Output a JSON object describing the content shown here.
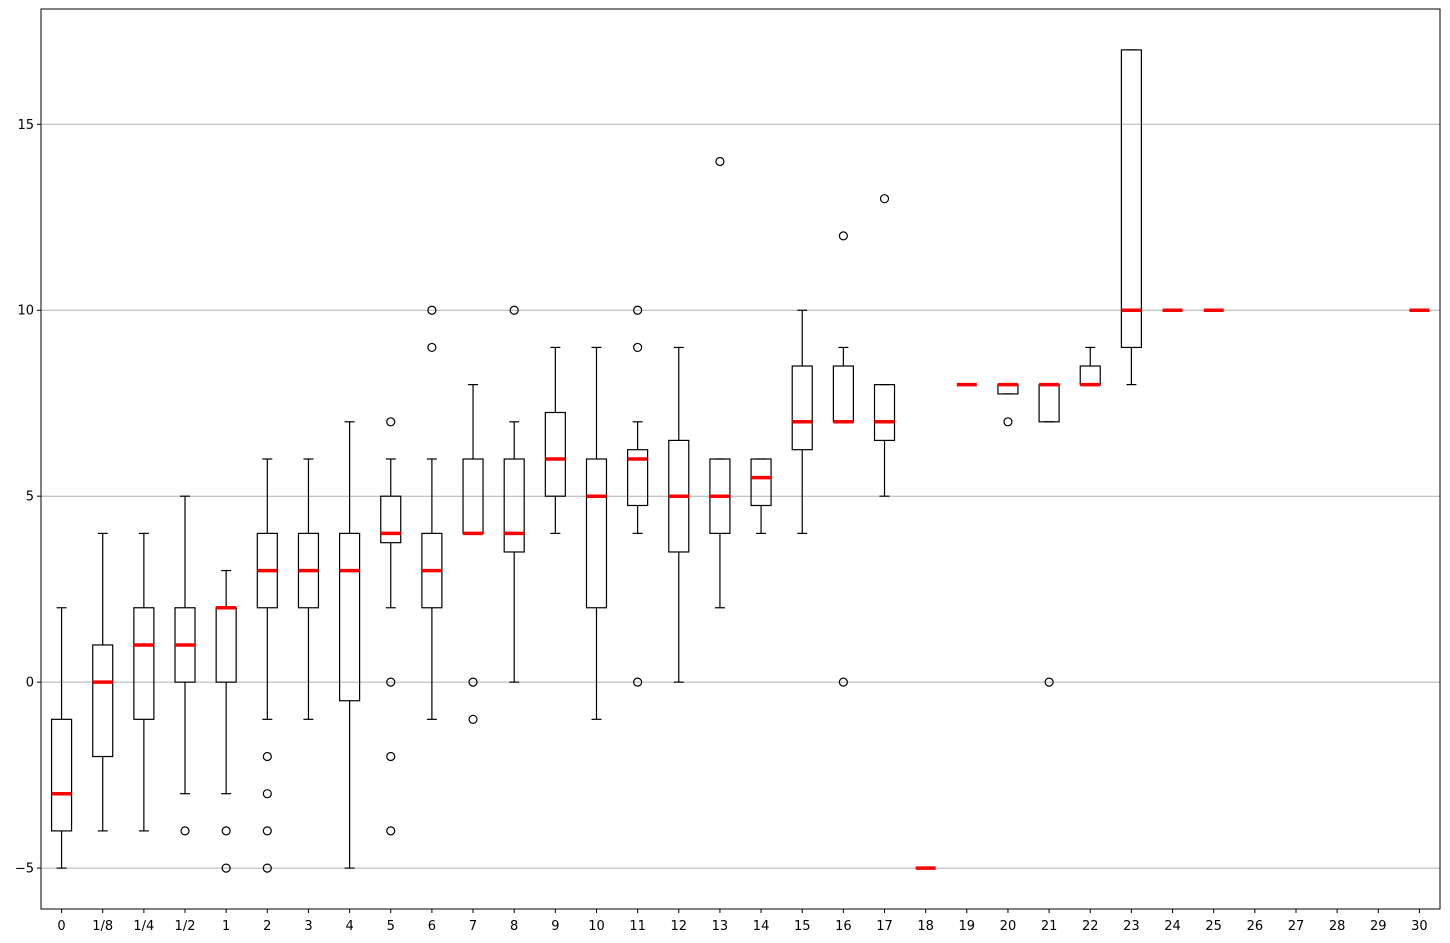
{
  "chart_data": {
    "type": "box",
    "title": "",
    "xlabel": "",
    "ylabel": "",
    "ylim": [
      -6.1,
      18.1
    ],
    "yticks": [
      -5,
      0,
      5,
      10,
      15
    ],
    "ytick_labels": [
      "−5",
      "0",
      "5",
      "10",
      "15"
    ],
    "grid": "horizontal",
    "median_color": "#ff0000",
    "box_color": "#000000",
    "categories": [
      "0",
      "1/8",
      "1/4",
      "1/2",
      "1",
      "2",
      "3",
      "4",
      "5",
      "6",
      "7",
      "8",
      "9",
      "10",
      "11",
      "12",
      "13",
      "14",
      "15",
      "16",
      "17",
      "18",
      "19",
      "20",
      "21",
      "22",
      "23",
      "24",
      "25",
      "26",
      "27",
      "28",
      "29",
      "30"
    ],
    "boxes": [
      {
        "category": "0",
        "whislo": -5,
        "q1": -4,
        "med": -3,
        "q3": -1,
        "whishi": 2,
        "fliers": []
      },
      {
        "category": "1/8",
        "whislo": -4,
        "q1": -2,
        "med": 0,
        "q3": 1,
        "whishi": 4,
        "fliers": []
      },
      {
        "category": "1/4",
        "whislo": -4,
        "q1": -1,
        "med": 1,
        "q3": 2,
        "whishi": 4,
        "fliers": []
      },
      {
        "category": "1/2",
        "whislo": -3,
        "q1": 0,
        "med": 1,
        "q3": 2,
        "whishi": 5,
        "fliers": [
          -4
        ]
      },
      {
        "category": "1",
        "whislo": -3,
        "q1": 0,
        "med": 2,
        "q3": 2,
        "whishi": 3,
        "fliers": [
          -4,
          -5
        ]
      },
      {
        "category": "2",
        "whislo": -1,
        "q1": 2,
        "med": 3,
        "q3": 4,
        "whishi": 6,
        "fliers": [
          -2,
          -3,
          -4,
          -5
        ]
      },
      {
        "category": "3",
        "whislo": -1,
        "q1": 2,
        "med": 3,
        "q3": 4,
        "whishi": 6,
        "fliers": []
      },
      {
        "category": "4",
        "whislo": -5,
        "q1": -0.5,
        "med": 3,
        "q3": 4,
        "whishi": 7,
        "fliers": []
      },
      {
        "category": "5",
        "whislo": 2,
        "q1": 3.75,
        "med": 4,
        "q3": 5,
        "whishi": 6,
        "fliers": [
          7,
          0,
          -2,
          -4
        ]
      },
      {
        "category": "6",
        "whislo": -1,
        "q1": 2,
        "med": 3,
        "q3": 4,
        "whishi": 6,
        "fliers": [
          10,
          9
        ]
      },
      {
        "category": "7",
        "whislo": 4,
        "q1": 4,
        "med": 4,
        "q3": 6,
        "whishi": 8,
        "fliers": [
          0,
          -1
        ]
      },
      {
        "category": "8",
        "whislo": 0,
        "q1": 3.5,
        "med": 4,
        "q3": 6,
        "whishi": 7,
        "fliers": [
          10
        ]
      },
      {
        "category": "9",
        "whislo": 4,
        "q1": 5,
        "med": 6,
        "q3": 7.25,
        "whishi": 9,
        "fliers": []
      },
      {
        "category": "10",
        "whislo": -1,
        "q1": 2,
        "med": 5,
        "q3": 6,
        "whishi": 9,
        "fliers": []
      },
      {
        "category": "11",
        "whislo": 4,
        "q1": 4.75,
        "med": 6,
        "q3": 6.25,
        "whishi": 7,
        "fliers": [
          10,
          9,
          0
        ]
      },
      {
        "category": "12",
        "whislo": 0,
        "q1": 3.5,
        "med": 5,
        "q3": 6.5,
        "whishi": 9,
        "fliers": []
      },
      {
        "category": "13",
        "whislo": 2,
        "q1": 4,
        "med": 5,
        "q3": 6,
        "whishi": 6,
        "fliers": [
          14
        ]
      },
      {
        "category": "14",
        "whislo": 4,
        "q1": 4.75,
        "med": 5.5,
        "q3": 6,
        "whishi": 6,
        "fliers": []
      },
      {
        "category": "15",
        "whislo": 4,
        "q1": 6.25,
        "med": 7,
        "q3": 8.5,
        "whishi": 10,
        "fliers": []
      },
      {
        "category": "16",
        "whislo": 7,
        "q1": 7,
        "med": 7,
        "q3": 8.5,
        "whishi": 9,
        "fliers": [
          12,
          0
        ]
      },
      {
        "category": "17",
        "whislo": 5,
        "q1": 6.5,
        "med": 7,
        "q3": 8,
        "whishi": 8,
        "fliers": [
          13
        ]
      },
      {
        "category": "18",
        "whislo": -5,
        "q1": -5,
        "med": -5,
        "q3": -5,
        "whishi": -5,
        "fliers": []
      },
      {
        "category": "19",
        "whislo": 8,
        "q1": 8,
        "med": 8,
        "q3": 8,
        "whishi": 8,
        "fliers": []
      },
      {
        "category": "20",
        "whislo": 7.75,
        "q1": 7.75,
        "med": 8,
        "q3": 8,
        "whishi": 8,
        "fliers": [
          7
        ]
      },
      {
        "category": "21",
        "whislo": 7,
        "q1": 7,
        "med": 8,
        "q3": 8,
        "whishi": 8,
        "fliers": [
          0
        ]
      },
      {
        "category": "22",
        "whislo": 8,
        "q1": 8,
        "med": 8,
        "q3": 8.5,
        "whishi": 9,
        "fliers": []
      },
      {
        "category": "23",
        "whislo": 8,
        "q1": 9,
        "med": 10,
        "q3": 17,
        "whishi": 17,
        "fliers": []
      },
      {
        "category": "24",
        "whislo": 10,
        "q1": 10,
        "med": 10,
        "q3": 10,
        "whishi": 10,
        "fliers": []
      },
      {
        "category": "25",
        "whislo": 10,
        "q1": 10,
        "med": 10,
        "q3": 10,
        "whishi": 10,
        "fliers": []
      },
      {
        "category": "26",
        "empty": true
      },
      {
        "category": "27",
        "empty": true
      },
      {
        "category": "28",
        "empty": true
      },
      {
        "category": "29",
        "empty": true
      },
      {
        "category": "30",
        "whislo": 10,
        "q1": 10,
        "med": 10,
        "q3": 10,
        "whishi": 10,
        "fliers": []
      }
    ]
  }
}
